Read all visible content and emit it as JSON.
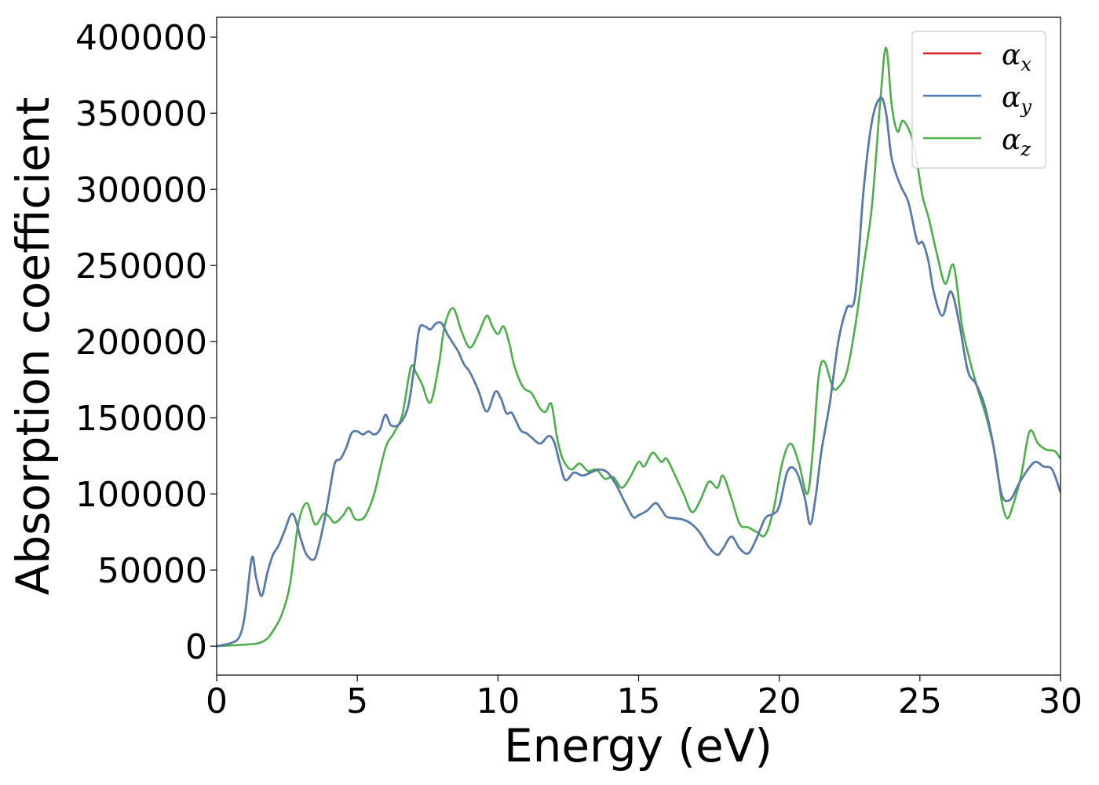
{
  "chart_data": {
    "type": "line",
    "xlabel": "Energy (eV)",
    "ylabel": "Absorption coefficient",
    "xlim": [
      0,
      30
    ],
    "ylim": [
      -19000,
      413000
    ],
    "xticks": [
      0,
      5,
      10,
      15,
      20,
      25,
      30
    ],
    "yticks": [
      0,
      50000,
      100000,
      150000,
      200000,
      250000,
      300000,
      350000,
      400000
    ],
    "grid": false,
    "legend_position": "top-right",
    "series": [
      {
        "name": "α_x",
        "label_base": "α",
        "label_sub": "x",
        "color": "#e41a1c",
        "x": [
          0,
          0.5,
          0.8,
          1.0,
          1.25,
          1.4,
          1.6,
          1.8,
          2.0,
          2.2,
          2.4,
          2.7,
          3.0,
          3.2,
          3.5,
          3.8,
          4.0,
          4.2,
          4.4,
          4.6,
          4.8,
          5.0,
          5.2,
          5.4,
          5.6,
          5.8,
          6.0,
          6.2,
          6.5,
          6.8,
          7.0,
          7.2,
          7.4,
          7.6,
          7.8,
          8.0,
          8.2,
          8.4,
          8.6,
          8.8,
          9.0,
          9.3,
          9.6,
          9.9,
          10.1,
          10.3,
          10.5,
          10.8,
          11.0,
          11.2,
          11.5,
          11.8,
          12.0,
          12.2,
          12.4,
          12.7,
          13.0,
          13.3,
          13.6,
          13.9,
          14.2,
          14.5,
          14.8,
          15.0,
          15.3,
          15.6,
          15.8,
          16.0,
          16.3,
          16.6,
          16.9,
          17.2,
          17.5,
          17.8,
          18.0,
          18.3,
          18.6,
          18.9,
          19.2,
          19.5,
          19.8,
          20.0,
          20.3,
          20.6,
          20.9,
          21.1,
          21.3,
          21.5,
          21.8,
          22.1,
          22.4,
          22.7,
          23.0,
          23.3,
          23.6,
          23.8,
          24.0,
          24.3,
          24.6,
          24.9,
          25.1,
          25.3,
          25.5,
          25.8,
          26.1,
          26.4,
          26.7,
          27.0,
          27.3,
          27.6,
          27.9,
          28.2,
          28.5,
          28.8,
          29.1,
          29.4,
          29.7,
          30.0
        ],
        "values": [
          0,
          2000,
          6000,
          20000,
          58000,
          45000,
          33000,
          48000,
          60000,
          66000,
          75000,
          87000,
          70000,
          60000,
          58000,
          80000,
          100000,
          120000,
          123000,
          130000,
          140000,
          141000,
          139000,
          141000,
          139000,
          142000,
          152000,
          145000,
          146000,
          157000,
          180000,
          208000,
          210000,
          208000,
          212000,
          212000,
          205000,
          199000,
          193000,
          185000,
          180000,
          168000,
          154000,
          167000,
          163000,
          153000,
          153000,
          142000,
          140000,
          137000,
          133000,
          138000,
          134000,
          120000,
          109000,
          114000,
          112000,
          114000,
          116000,
          114000,
          106000,
          95000,
          85000,
          86000,
          89000,
          94000,
          90000,
          85000,
          84000,
          83000,
          80000,
          74000,
          65000,
          60000,
          64000,
          72000,
          64000,
          61000,
          71000,
          84000,
          87000,
          92000,
          115000,
          115000,
          98000,
          80000,
          99000,
          128000,
          160000,
          200000,
          222000,
          230000,
          300000,
          345000,
          360000,
          350000,
          320000,
          303000,
          291000,
          266000,
          265000,
          253000,
          232000,
          217000,
          233000,
          212000,
          181000,
          172000,
          158000,
          133000,
          100000,
          96000,
          106000,
          115000,
          121000,
          118000,
          116000,
          101000
        ]
      },
      {
        "name": "α_y",
        "label_base": "α",
        "label_sub": "y",
        "color": "#4f7fb0",
        "x": [
          0,
          0.5,
          0.8,
          1.0,
          1.25,
          1.4,
          1.6,
          1.8,
          2.0,
          2.2,
          2.4,
          2.7,
          3.0,
          3.2,
          3.5,
          3.8,
          4.0,
          4.2,
          4.4,
          4.6,
          4.8,
          5.0,
          5.2,
          5.4,
          5.6,
          5.8,
          6.0,
          6.2,
          6.5,
          6.8,
          7.0,
          7.2,
          7.4,
          7.6,
          7.8,
          8.0,
          8.2,
          8.4,
          8.6,
          8.8,
          9.0,
          9.3,
          9.6,
          9.9,
          10.1,
          10.3,
          10.5,
          10.8,
          11.0,
          11.2,
          11.5,
          11.8,
          12.0,
          12.2,
          12.4,
          12.7,
          13.0,
          13.3,
          13.6,
          13.9,
          14.2,
          14.5,
          14.8,
          15.0,
          15.3,
          15.6,
          15.8,
          16.0,
          16.3,
          16.6,
          16.9,
          17.2,
          17.5,
          17.8,
          18.0,
          18.3,
          18.6,
          18.9,
          19.2,
          19.5,
          19.8,
          20.0,
          20.3,
          20.6,
          20.9,
          21.1,
          21.3,
          21.5,
          21.8,
          22.1,
          22.4,
          22.7,
          23.0,
          23.3,
          23.6,
          23.8,
          24.0,
          24.3,
          24.6,
          24.9,
          25.1,
          25.3,
          25.5,
          25.8,
          26.1,
          26.4,
          26.7,
          27.0,
          27.3,
          27.6,
          27.9,
          28.2,
          28.5,
          28.8,
          29.1,
          29.4,
          29.7,
          30.0
        ],
        "values": [
          0,
          2000,
          6000,
          20000,
          58000,
          45000,
          33000,
          48000,
          60000,
          66000,
          75000,
          87000,
          70000,
          60000,
          58000,
          80000,
          100000,
          120000,
          123000,
          130000,
          140000,
          141000,
          139000,
          141000,
          139000,
          142000,
          152000,
          145000,
          146000,
          157000,
          180000,
          208000,
          210000,
          208000,
          212000,
          212000,
          205000,
          199000,
          193000,
          185000,
          180000,
          168000,
          154000,
          167000,
          163000,
          153000,
          153000,
          142000,
          140000,
          137000,
          133000,
          138000,
          134000,
          120000,
          109000,
          114000,
          112000,
          114000,
          116000,
          114000,
          106000,
          95000,
          85000,
          86000,
          89000,
          94000,
          90000,
          85000,
          84000,
          83000,
          80000,
          74000,
          65000,
          60000,
          64000,
          72000,
          64000,
          61000,
          71000,
          84000,
          87000,
          92000,
          115000,
          115000,
          98000,
          80000,
          99000,
          128000,
          160000,
          200000,
          222000,
          230000,
          300000,
          345000,
          360000,
          350000,
          320000,
          303000,
          291000,
          266000,
          265000,
          253000,
          232000,
          217000,
          233000,
          212000,
          181000,
          172000,
          158000,
          133000,
          100000,
          96000,
          106000,
          115000,
          121000,
          118000,
          116000,
          101000
        ]
      },
      {
        "name": "α_z",
        "label_base": "α",
        "label_sub": "z",
        "color": "#4daf4a",
        "x": [
          0,
          0.5,
          1.0,
          1.5,
          1.8,
          2.0,
          2.3,
          2.6,
          2.9,
          3.2,
          3.5,
          3.8,
          4.0,
          4.2,
          4.5,
          4.7,
          4.9,
          5.1,
          5.3,
          5.6,
          6.0,
          6.3,
          6.6,
          6.9,
          7.1,
          7.3,
          7.6,
          7.9,
          8.1,
          8.4,
          8.7,
          9.0,
          9.3,
          9.6,
          9.8,
          10.0,
          10.2,
          10.4,
          10.6,
          10.9,
          11.2,
          11.5,
          11.7,
          11.9,
          12.1,
          12.3,
          12.6,
          12.9,
          13.2,
          13.5,
          13.8,
          14.1,
          14.4,
          14.7,
          15.0,
          15.2,
          15.5,
          15.8,
          16.0,
          16.3,
          16.6,
          16.9,
          17.2,
          17.5,
          17.8,
          18.0,
          18.3,
          18.6,
          18.9,
          19.2,
          19.5,
          19.8,
          20.1,
          20.4,
          20.7,
          21.0,
          21.2,
          21.4,
          21.6,
          21.9,
          22.1,
          22.4,
          22.7,
          23.0,
          23.3,
          23.6,
          23.8,
          24.0,
          24.2,
          24.4,
          24.7,
          24.9,
          25.1,
          25.3,
          25.6,
          25.9,
          26.2,
          26.5,
          26.8,
          27.1,
          27.4,
          27.7,
          27.9,
          28.1,
          28.3,
          28.6,
          28.9,
          29.2,
          29.5,
          29.8,
          30.0
        ],
        "values": [
          0,
          500,
          1000,
          2000,
          5000,
          10000,
          20000,
          40000,
          80000,
          94000,
          80000,
          87000,
          85000,
          81000,
          86000,
          91000,
          84000,
          83000,
          86000,
          100000,
          130000,
          140000,
          152000,
          183000,
          179000,
          172000,
          160000,
          185000,
          210000,
          222000,
          207000,
          196000,
          205000,
          217000,
          210000,
          205000,
          210000,
          199000,
          183000,
          170000,
          166000,
          156000,
          154000,
          159000,
          137000,
          123000,
          116000,
          120000,
          115000,
          116000,
          110000,
          111000,
          104000,
          111000,
          121000,
          118000,
          127000,
          121000,
          123000,
          112000,
          100000,
          88000,
          96000,
          108000,
          104000,
          112000,
          97000,
          80000,
          78000,
          75000,
          73000,
          90000,
          120000,
          133000,
          120000,
          100000,
          130000,
          177000,
          187000,
          170000,
          170000,
          180000,
          210000,
          250000,
          290000,
          360000,
          393000,
          355000,
          338000,
          345000,
          335000,
          317000,
          295000,
          282000,
          258000,
          238000,
          250000,
          210000,
          186000,
          166000,
          148000,
          123000,
          96000,
          84000,
          92000,
          112000,
          141000,
          133000,
          129000,
          128000,
          123000
        ]
      }
    ]
  }
}
